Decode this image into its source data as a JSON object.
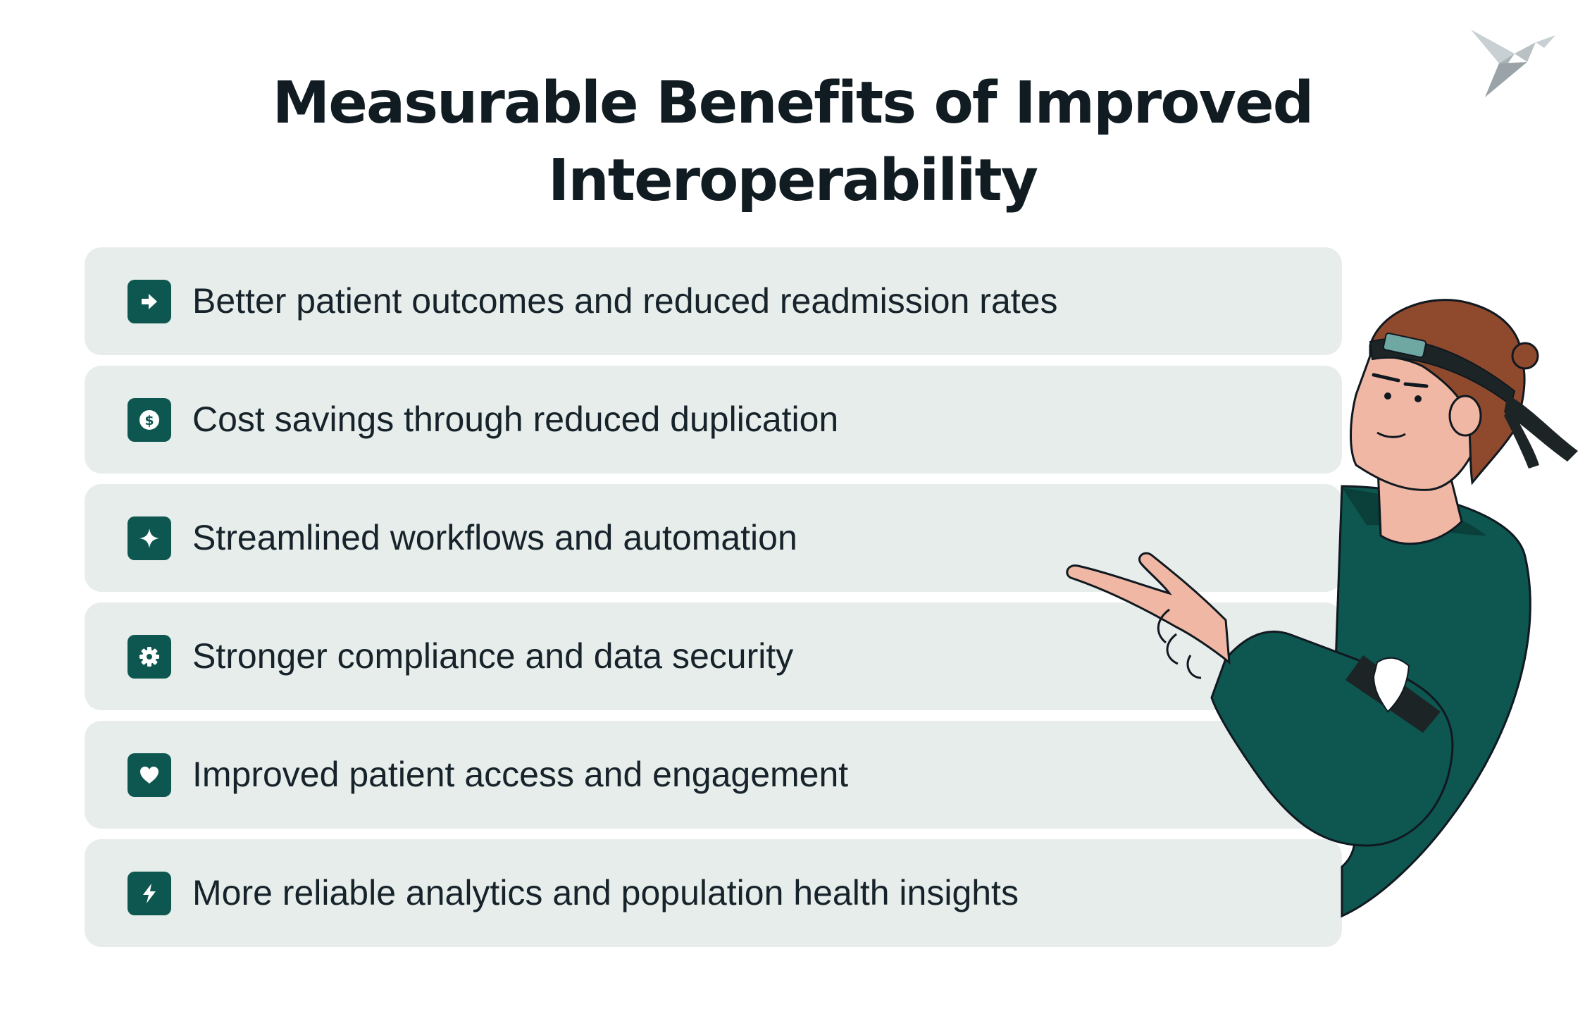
{
  "page": {
    "title_line1": "Measurable Benefits of Improved",
    "title_line2": "Interoperability"
  },
  "benefits": [
    {
      "label": "Better patient outcomes and reduced readmission rates",
      "icon": "arrow-right-icon"
    },
    {
      "label": "Cost savings through reduced duplication",
      "icon": "dollar-coin-icon"
    },
    {
      "label": "Streamlined workflows and automation",
      "icon": "sparkle-icon"
    },
    {
      "label": "Stronger compliance and data security",
      "icon": "gear-icon"
    },
    {
      "label": "Improved patient access and engagement",
      "icon": "heart-icon"
    },
    {
      "label": "More reliable analytics and population health insights",
      "icon": "lightning-icon"
    }
  ],
  "colors": {
    "accent": "#0d5750",
    "card_background": "#e6edeb",
    "title_text": "#111c22",
    "body_text": "#17232a",
    "hoodie": "#0d5750",
    "hair": "#8f4a2e",
    "skin": "#f0b8a4"
  }
}
